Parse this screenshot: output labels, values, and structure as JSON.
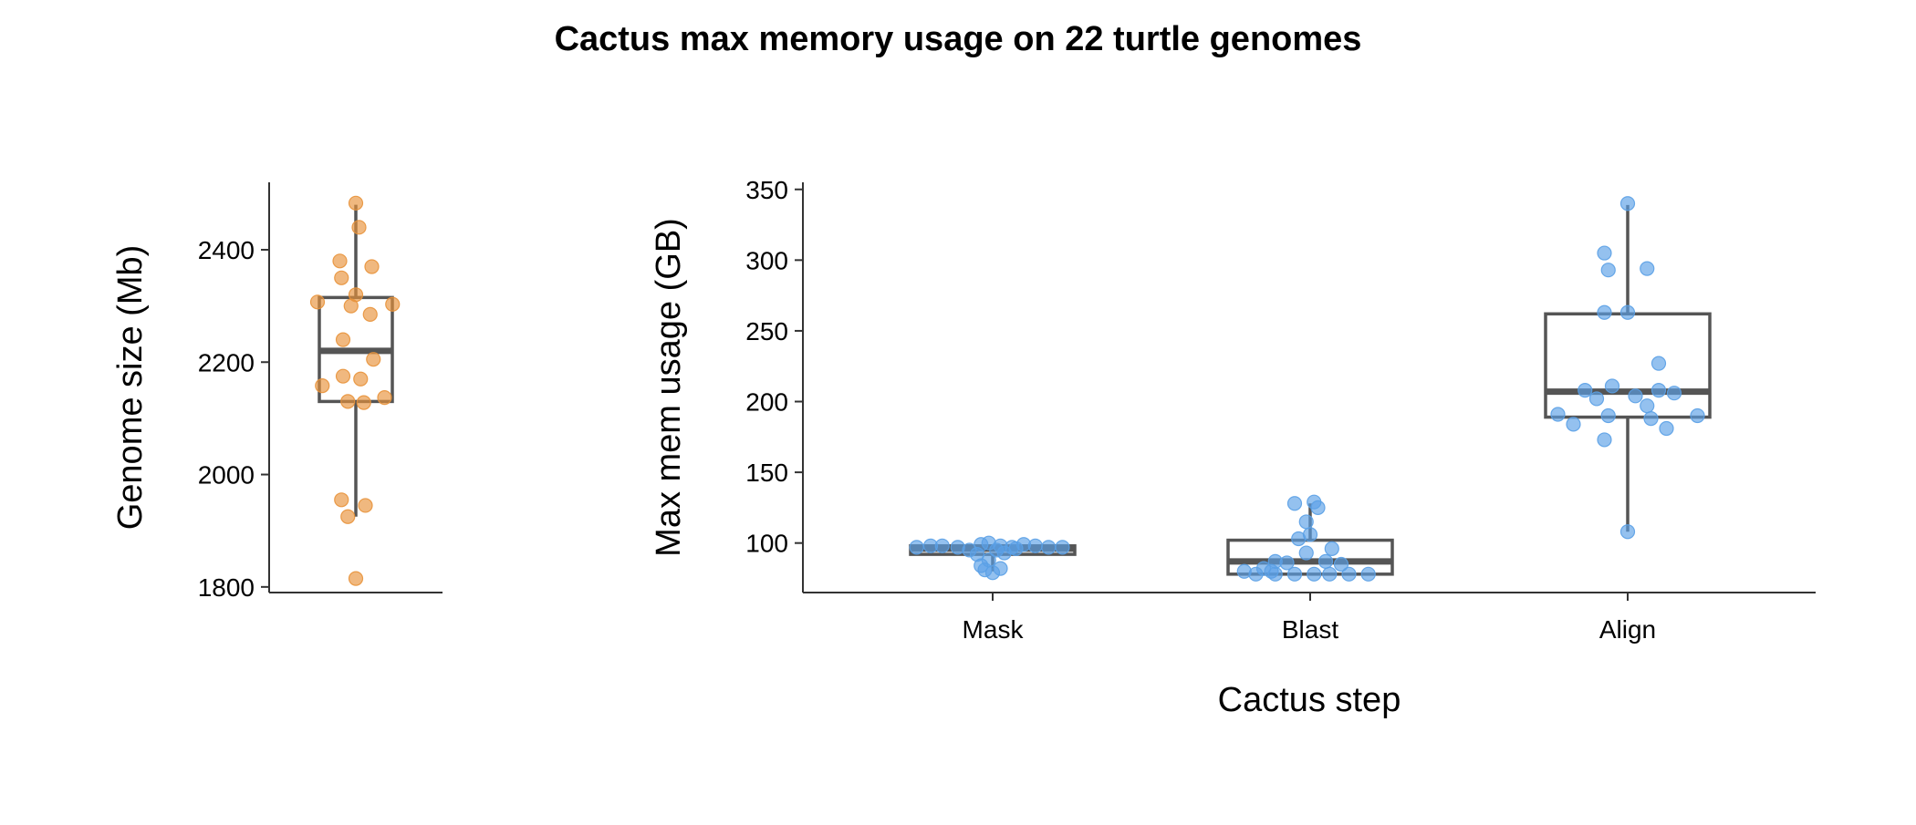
{
  "figure": {
    "title": "Cactus max memory usage on 22 turtle genomes"
  },
  "chart_data": [
    {
      "type": "box",
      "title": "",
      "xlabel": "",
      "ylabel": "Genome size (Mb)",
      "ylim": [
        1790,
        2520
      ],
      "yticks": [
        "1800",
        "2000",
        "2200",
        "2400"
      ],
      "grid": false,
      "point_color": "#E8923A",
      "box_color": "#555555",
      "boxes": [
        {
          "name": "",
          "whisker_low": 1925,
          "q1": 2130,
          "median": 2220,
          "q3": 2315,
          "whisker_high": 2480,
          "points": [
            {
              "jitter": 0,
              "y": 2483
            },
            {
              "jitter": 0.1,
              "y": 2440
            },
            {
              "jitter": -0.5,
              "y": 2380
            },
            {
              "jitter": 0.5,
              "y": 2370
            },
            {
              "jitter": -0.45,
              "y": 2350
            },
            {
              "jitter": 0,
              "y": 2320
            },
            {
              "jitter": -1.2,
              "y": 2307
            },
            {
              "jitter": 1.15,
              "y": 2303
            },
            {
              "jitter": -0.15,
              "y": 2300
            },
            {
              "jitter": 0.45,
              "y": 2285
            },
            {
              "jitter": -0.4,
              "y": 2240
            },
            {
              "jitter": 0.55,
              "y": 2205
            },
            {
              "jitter": -0.4,
              "y": 2175
            },
            {
              "jitter": 0.15,
              "y": 2170
            },
            {
              "jitter": -1.05,
              "y": 2158
            },
            {
              "jitter": 0.9,
              "y": 2137
            },
            {
              "jitter": -0.25,
              "y": 2130
            },
            {
              "jitter": 0.25,
              "y": 2128
            },
            {
              "jitter": -0.45,
              "y": 1955
            },
            {
              "jitter": 0.3,
              "y": 1945
            },
            {
              "jitter": -0.25,
              "y": 1925
            },
            {
              "jitter": 0,
              "y": 1815
            }
          ]
        }
      ]
    },
    {
      "type": "box",
      "title": "",
      "xlabel": "Cactus step",
      "ylabel": "Max mem usage (GB)",
      "categories": [
        "Mask",
        "Blast",
        "Align"
      ],
      "ylim": [
        65,
        355
      ],
      "yticks": [
        "100",
        "150",
        "200",
        "250",
        "300",
        "350"
      ],
      "grid": false,
      "point_color": "#5AA0E6",
      "box_color": "#555555",
      "boxes": [
        {
          "name": "Mask",
          "whisker_low": 80,
          "q1": 92,
          "median": 96,
          "q3": 98,
          "whisker_high": 99,
          "points": [
            {
              "jitter": -0.98,
              "y": 97
            },
            {
              "jitter": -0.8,
              "y": 98
            },
            {
              "jitter": -0.65,
              "y": 98
            },
            {
              "jitter": -0.45,
              "y": 97
            },
            {
              "jitter": -0.3,
              "y": 95
            },
            {
              "jitter": -0.15,
              "y": 99
            },
            {
              "jitter": -0.05,
              "y": 100
            },
            {
              "jitter": 0.1,
              "y": 98
            },
            {
              "jitter": 0.25,
              "y": 97
            },
            {
              "jitter": 0.4,
              "y": 99
            },
            {
              "jitter": 0.55,
              "y": 98
            },
            {
              "jitter": 0.72,
              "y": 97
            },
            {
              "jitter": 0.9,
              "y": 97
            },
            {
              "jitter": 0.15,
              "y": 93
            },
            {
              "jitter": -0.2,
              "y": 92
            },
            {
              "jitter": 0.05,
              "y": 95
            },
            {
              "jitter": -0.05,
              "y": 88
            },
            {
              "jitter": -0.15,
              "y": 84
            },
            {
              "jitter": -0.1,
              "y": 81
            },
            {
              "jitter": 0.1,
              "y": 82
            },
            {
              "jitter": 0.0,
              "y": 79
            },
            {
              "jitter": 0.3,
              "y": 96
            }
          ]
        },
        {
          "name": "Blast",
          "whisker_low": 78,
          "q1": 78,
          "median": 87,
          "q3": 102,
          "whisker_high": 128,
          "points": [
            {
              "jitter": -0.2,
              "y": 128
            },
            {
              "jitter": 0.05,
              "y": 129
            },
            {
              "jitter": 0.1,
              "y": 125
            },
            {
              "jitter": -0.05,
              "y": 115
            },
            {
              "jitter": -0.15,
              "y": 103
            },
            {
              "jitter": 0.0,
              "y": 106
            },
            {
              "jitter": 0.28,
              "y": 96
            },
            {
              "jitter": -0.05,
              "y": 93
            },
            {
              "jitter": -0.45,
              "y": 87
            },
            {
              "jitter": -0.3,
              "y": 86
            },
            {
              "jitter": 0.2,
              "y": 87
            },
            {
              "jitter": 0.4,
              "y": 85
            },
            {
              "jitter": -0.6,
              "y": 82
            },
            {
              "jitter": -0.5,
              "y": 80
            },
            {
              "jitter": -0.85,
              "y": 80
            },
            {
              "jitter": -0.7,
              "y": 78
            },
            {
              "jitter": -0.45,
              "y": 78
            },
            {
              "jitter": -0.2,
              "y": 78
            },
            {
              "jitter": 0.05,
              "y": 78
            },
            {
              "jitter": 0.25,
              "y": 78
            },
            {
              "jitter": 0.5,
              "y": 78
            },
            {
              "jitter": 0.75,
              "y": 78
            }
          ]
        },
        {
          "name": "Align",
          "whisker_low": 108,
          "q1": 189,
          "median": 207,
          "q3": 262,
          "whisker_high": 339,
          "points": [
            {
              "jitter": 0.0,
              "y": 340
            },
            {
              "jitter": -0.3,
              "y": 305
            },
            {
              "jitter": -0.25,
              "y": 293
            },
            {
              "jitter": 0.25,
              "y": 294
            },
            {
              "jitter": -0.3,
              "y": 263
            },
            {
              "jitter": 0.0,
              "y": 263
            },
            {
              "jitter": 0.4,
              "y": 227
            },
            {
              "jitter": -0.2,
              "y": 211
            },
            {
              "jitter": -0.55,
              "y": 208
            },
            {
              "jitter": 0.4,
              "y": 208
            },
            {
              "jitter": 0.6,
              "y": 206
            },
            {
              "jitter": -0.4,
              "y": 202
            },
            {
              "jitter": 0.1,
              "y": 204
            },
            {
              "jitter": 0.25,
              "y": 197
            },
            {
              "jitter": -0.9,
              "y": 191
            },
            {
              "jitter": -0.25,
              "y": 190
            },
            {
              "jitter": 0.3,
              "y": 188
            },
            {
              "jitter": 0.9,
              "y": 190
            },
            {
              "jitter": -0.7,
              "y": 184
            },
            {
              "jitter": 0.5,
              "y": 181
            },
            {
              "jitter": -0.3,
              "y": 173
            },
            {
              "jitter": 0.0,
              "y": 108
            }
          ]
        }
      ]
    }
  ]
}
